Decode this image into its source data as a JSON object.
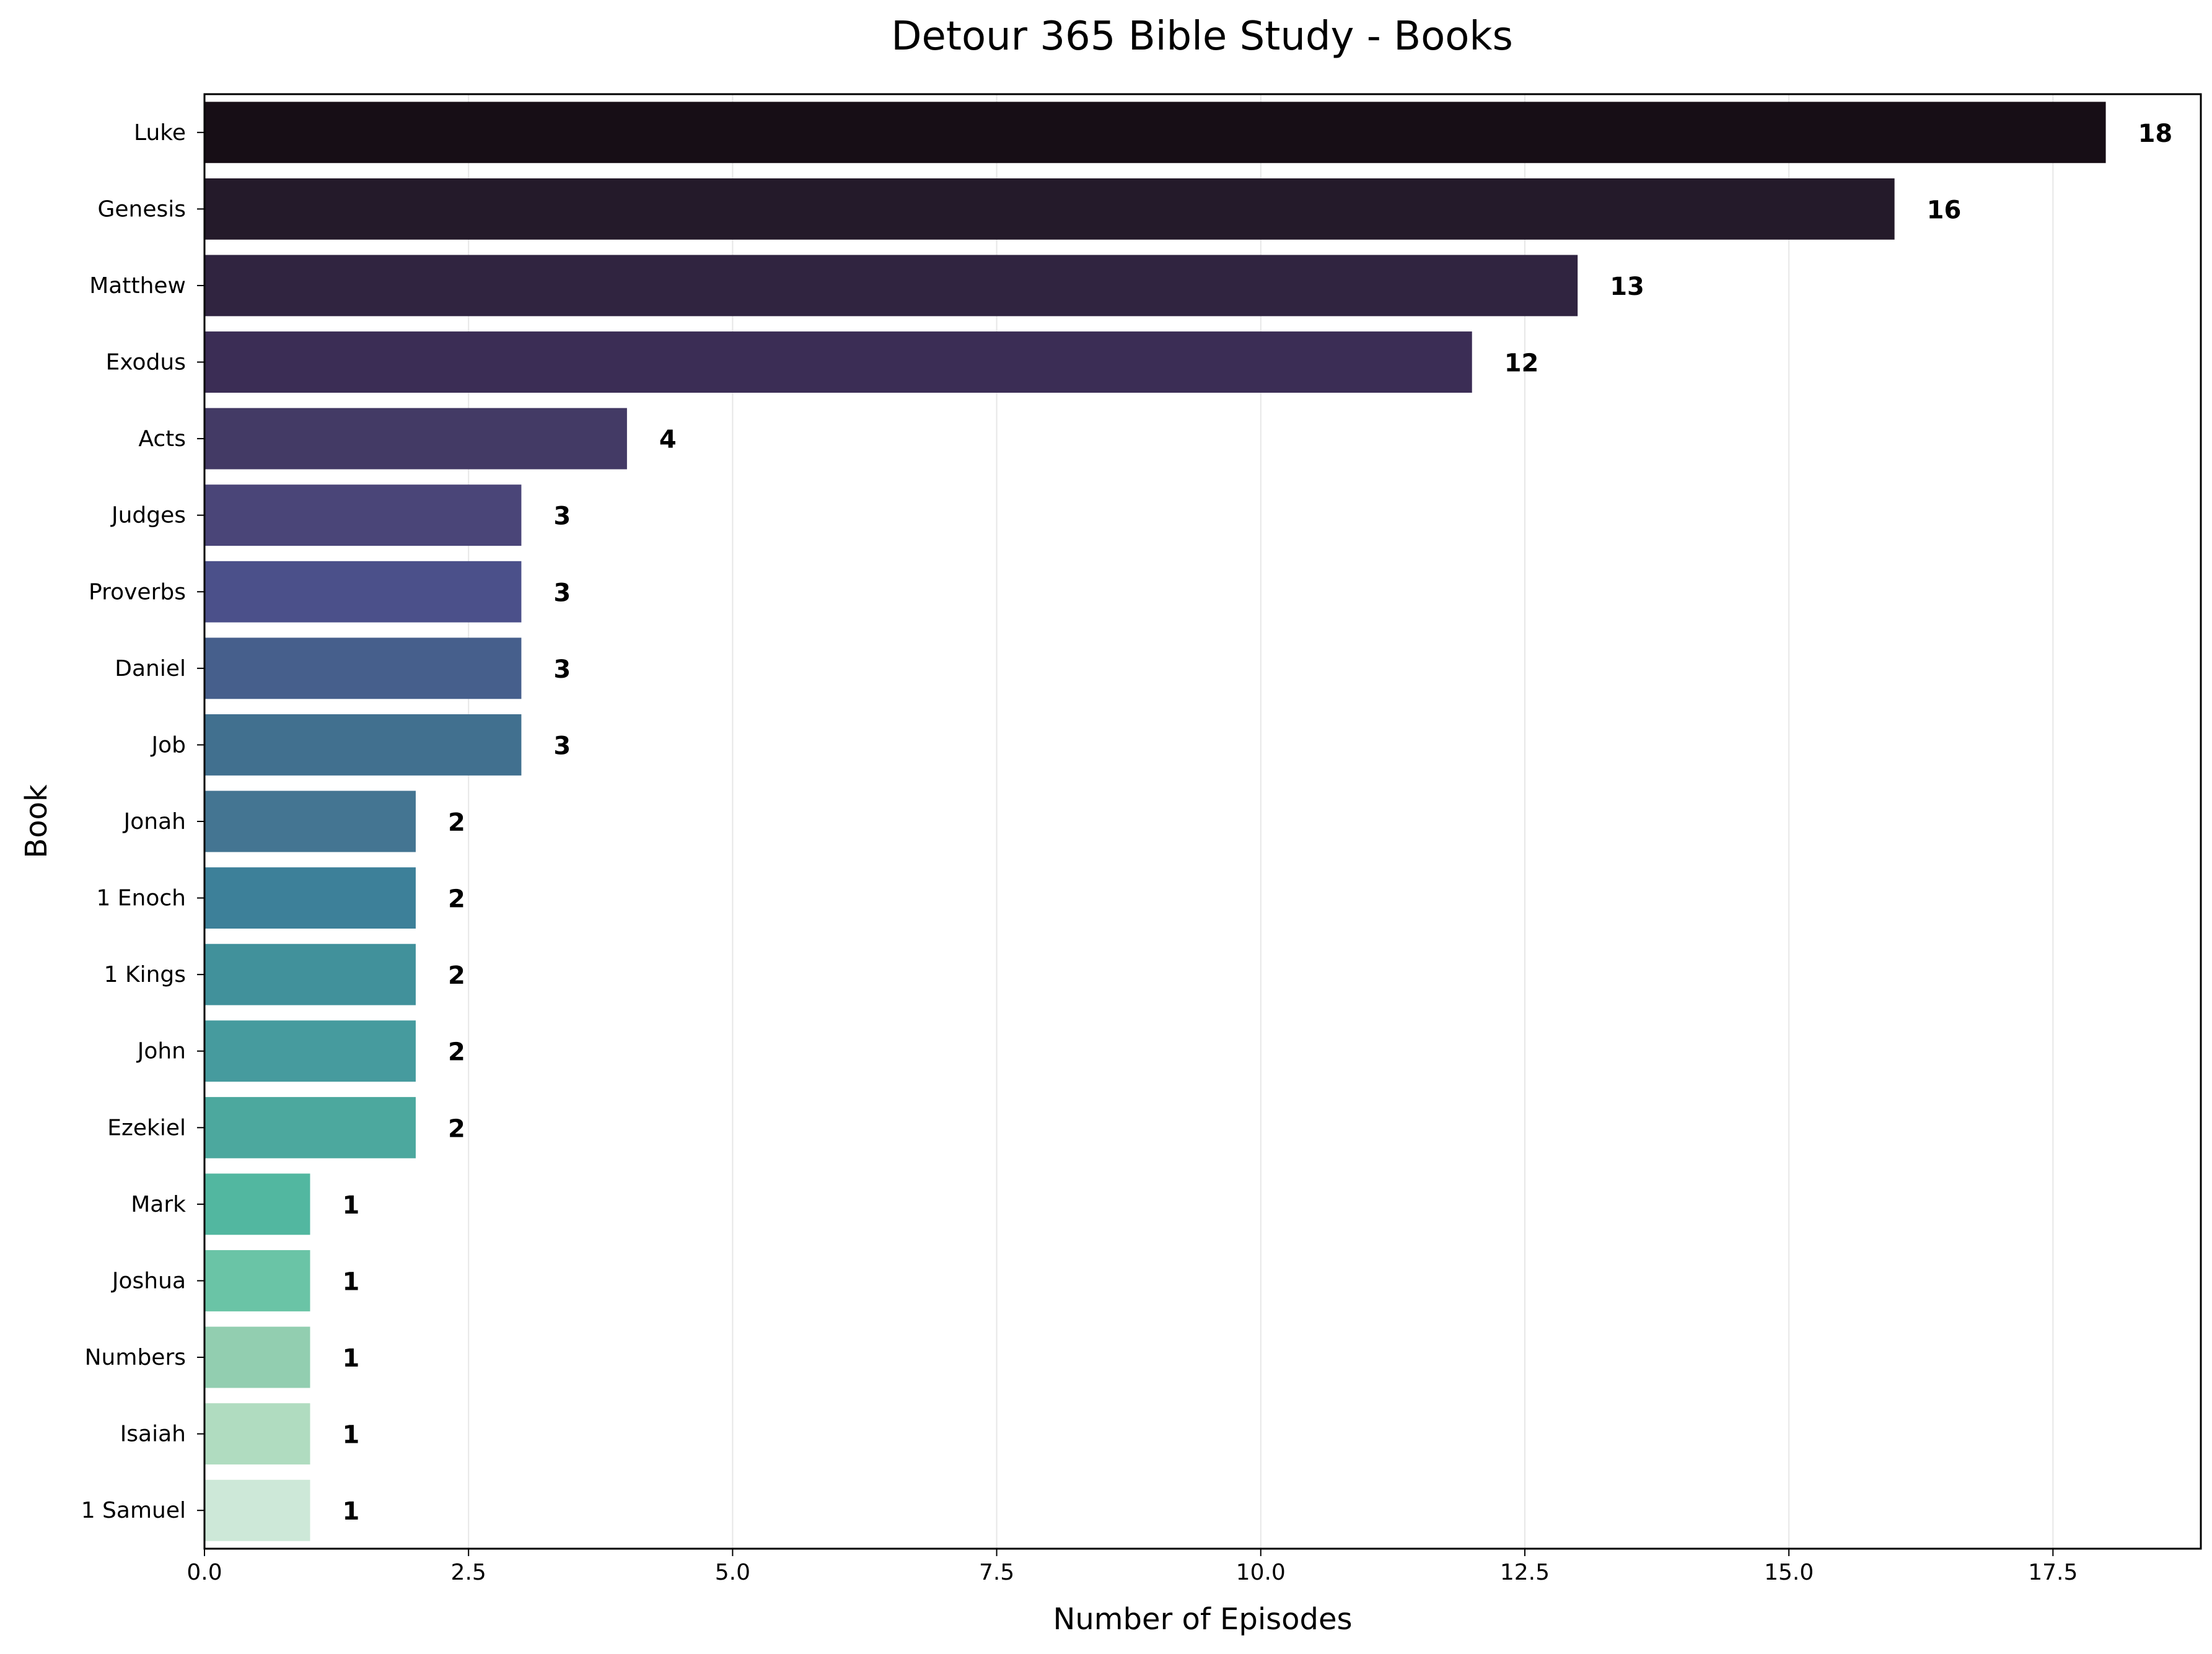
{
  "chart_data": {
    "type": "bar",
    "orientation": "horizontal",
    "title": "Detour 365 Bible Study - Books",
    "xlabel": "Number of Episodes",
    "ylabel": "Book",
    "xlim": [
      0,
      18.9
    ],
    "x_ticks": [
      "0.0",
      "2.5",
      "5.0",
      "7.5",
      "10.0",
      "12.5",
      "15.0",
      "17.5"
    ],
    "x_tick_values": [
      0,
      2.5,
      5,
      7.5,
      10,
      12.5,
      15,
      17.5
    ],
    "grid": "vertical",
    "categories": [
      "Luke",
      "Genesis",
      "Matthew",
      "Exodus",
      "Acts",
      "Judges",
      "Proverbs",
      "Daniel",
      "Job",
      "Jonah",
      "1 Enoch",
      "1 Kings",
      "John",
      "Ezekiel",
      "Mark",
      "Joshua",
      "Numbers",
      "Isaiah",
      "1 Samuel"
    ],
    "values": [
      18,
      16,
      13,
      12,
      4,
      3,
      3,
      3,
      3,
      2,
      2,
      2,
      2,
      2,
      1,
      1,
      1,
      1,
      1
    ],
    "colors": [
      "#170e16",
      "#241a2a",
      "#302440",
      "#3b2d55",
      "#433a65",
      "#4a4578",
      "#4b508a",
      "#465f8c",
      "#41708f",
      "#447592",
      "#3d8099",
      "#41919b",
      "#469b9e",
      "#4ca89e",
      "#52b7a0",
      "#6ac4a6",
      "#92ceb0",
      "#b0dcc0",
      "#cde8d8"
    ]
  }
}
